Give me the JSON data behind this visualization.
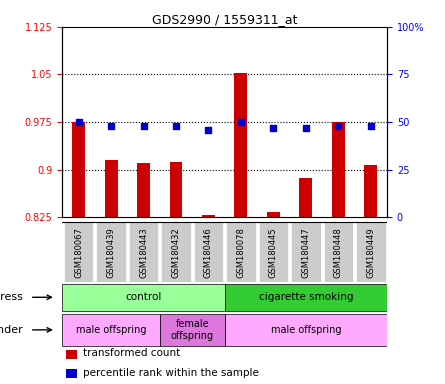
{
  "title": "GDS2990 / 1559311_at",
  "samples": [
    "GSM180067",
    "GSM180439",
    "GSM180443",
    "GSM180432",
    "GSM180446",
    "GSM180078",
    "GSM180445",
    "GSM180447",
    "GSM180448",
    "GSM180449"
  ],
  "red_values": [
    0.975,
    0.915,
    0.91,
    0.912,
    0.828,
    1.052,
    0.833,
    0.887,
    0.975,
    0.907
  ],
  "blue_values": [
    50,
    48,
    48,
    48,
    46,
    50,
    47,
    47,
    48,
    48
  ],
  "ylim_left": [
    0.825,
    1.125
  ],
  "ylim_right": [
    0,
    100
  ],
  "yticks_left": [
    0.825,
    0.9,
    0.975,
    1.05,
    1.125
  ],
  "yticks_right": [
    0,
    25,
    50,
    75,
    100
  ],
  "ytick_labels_left": [
    "0.825",
    "0.9",
    "0.975",
    "1.05",
    "1.125"
  ],
  "ytick_labels_right": [
    "0",
    "25",
    "50",
    "75",
    "100%"
  ],
  "hlines": [
    0.9,
    0.975,
    1.05
  ],
  "bar_color": "#cc0000",
  "dot_color": "#0000cc",
  "bar_bottom": 0.825,
  "stress_labels": [
    {
      "text": "control",
      "span": [
        0,
        4
      ],
      "color": "#99ff99"
    },
    {
      "text": "cigarette smoking",
      "span": [
        5,
        9
      ],
      "color": "#33cc33"
    }
  ],
  "gender_labels": [
    {
      "text": "male offspring",
      "span": [
        0,
        2
      ],
      "color": "#ffaaff"
    },
    {
      "text": "female\noffspring",
      "span": [
        3,
        4
      ],
      "color": "#dd77dd"
    },
    {
      "text": "male offspring",
      "span": [
        5,
        9
      ],
      "color": "#ffaaff"
    }
  ],
  "stress_row_label": "stress",
  "gender_row_label": "gender",
  "legend_items": [
    {
      "color": "#cc0000",
      "label": "transformed count"
    },
    {
      "color": "#0000cc",
      "label": "percentile rank within the sample"
    }
  ],
  "bg_color": "#ffffff",
  "tick_bg_color": "#cccccc"
}
